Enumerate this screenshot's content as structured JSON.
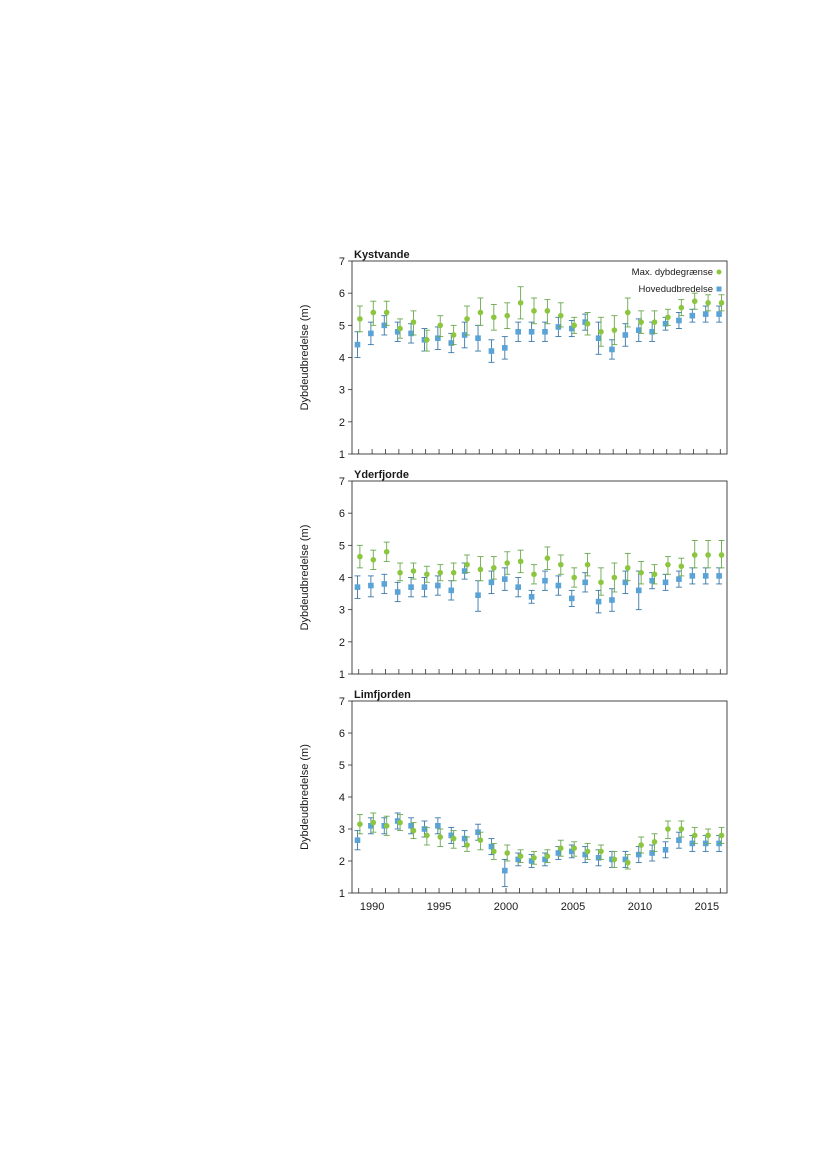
{
  "colors": {
    "max_dybdegraense": "#8cc63f",
    "hovedudbredelse": "#5aa3d6",
    "max_error": "#6aa84f",
    "hoved_error": "#3b78a8"
  },
  "chart_data": [
    {
      "type": "scatter",
      "title": "Kystvande",
      "xlabel": "",
      "ylabel": "Dybdeudbredelse (m)",
      "ylim": [
        1,
        7
      ],
      "yticks": [
        "1",
        "2",
        "3",
        "4",
        "5",
        "6",
        "7"
      ],
      "xlim": [
        1988.5,
        2016.5
      ],
      "xticks": [],
      "grid": false,
      "legend": "top-right",
      "x": [
        1989,
        1990,
        1991,
        1992,
        1993,
        1994,
        1995,
        1996,
        1997,
        1998,
        1999,
        2000,
        2001,
        2002,
        2003,
        2004,
        2005,
        2006,
        2007,
        2008,
        2009,
        2010,
        2011,
        2012,
        2013,
        2014,
        2015,
        2016
      ],
      "series": [
        {
          "name": "Max. dybdegrænse",
          "marker": "circle",
          "values": [
            5.2,
            5.4,
            5.4,
            4.9,
            5.1,
            4.55,
            5.0,
            4.7,
            5.2,
            5.4,
            5.25,
            5.3,
            5.7,
            5.45,
            5.45,
            5.3,
            5.0,
            5.05,
            4.8,
            4.85,
            5.4,
            5.1,
            5.1,
            5.25,
            5.55,
            5.75,
            5.7,
            5.7
          ],
          "err_low": [
            4.8,
            5.0,
            5.0,
            4.6,
            4.7,
            4.2,
            4.65,
            4.4,
            4.7,
            5.0,
            4.85,
            4.9,
            5.2,
            5.05,
            5.05,
            4.95,
            4.75,
            4.7,
            4.35,
            4.4,
            4.95,
            4.75,
            4.75,
            5.0,
            5.3,
            5.5,
            5.45,
            5.45
          ],
          "err_high": [
            5.6,
            5.75,
            5.75,
            5.2,
            5.45,
            4.85,
            5.3,
            5.0,
            5.6,
            5.85,
            5.65,
            5.7,
            6.2,
            5.85,
            5.8,
            5.7,
            5.25,
            5.4,
            5.25,
            5.3,
            5.85,
            5.45,
            5.45,
            5.5,
            5.8,
            6.0,
            5.95,
            5.95
          ]
        },
        {
          "name": "Hovedudbredelse",
          "marker": "square",
          "values": [
            4.4,
            4.75,
            5.0,
            4.8,
            4.75,
            4.55,
            4.6,
            4.45,
            4.7,
            4.6,
            4.2,
            4.3,
            4.8,
            4.8,
            4.8,
            4.95,
            4.9,
            5.1,
            4.6,
            4.25,
            4.7,
            4.85,
            4.8,
            5.05,
            5.15,
            5.3,
            5.35,
            5.35
          ],
          "err_low": [
            4.0,
            4.4,
            4.7,
            4.5,
            4.45,
            4.2,
            4.25,
            4.15,
            4.3,
            4.2,
            3.85,
            3.95,
            4.5,
            4.5,
            4.5,
            4.65,
            4.65,
            4.85,
            4.1,
            3.95,
            4.35,
            4.5,
            4.5,
            4.85,
            4.9,
            5.1,
            5.1,
            5.1
          ],
          "err_high": [
            4.8,
            5.1,
            5.3,
            5.1,
            5.05,
            4.9,
            4.95,
            4.75,
            5.1,
            5.0,
            4.55,
            4.65,
            5.1,
            5.1,
            5.1,
            5.25,
            5.15,
            5.35,
            5.1,
            4.55,
            5.05,
            5.2,
            5.1,
            5.25,
            5.4,
            5.5,
            5.6,
            5.6
          ]
        }
      ]
    },
    {
      "type": "scatter",
      "title": "Yderfjorde",
      "xlabel": "",
      "ylabel": "Dybdeudbredelse (m)",
      "ylim": [
        1,
        7
      ],
      "yticks": [
        "1",
        "2",
        "3",
        "4",
        "5",
        "6",
        "7"
      ],
      "xlim": [
        1988.5,
        2016.5
      ],
      "xticks": [],
      "grid": false,
      "x": [
        1989,
        1990,
        1991,
        1992,
        1993,
        1994,
        1995,
        1996,
        1997,
        1998,
        1999,
        2000,
        2001,
        2002,
        2003,
        2004,
        2005,
        2006,
        2007,
        2008,
        2009,
        2010,
        2011,
        2012,
        2013,
        2014,
        2015,
        2016
      ],
      "series": [
        {
          "name": "Max. dybdegrænse",
          "marker": "circle",
          "values": [
            4.65,
            4.55,
            4.8,
            4.15,
            4.2,
            4.1,
            4.15,
            4.15,
            4.4,
            4.25,
            4.3,
            4.45,
            4.5,
            4.1,
            4.6,
            4.4,
            4.0,
            4.4,
            3.85,
            4.0,
            4.3,
            4.15,
            4.1,
            4.4,
            4.35,
            4.7,
            4.7,
            4.7
          ],
          "err_low": [
            4.3,
            4.25,
            4.5,
            3.9,
            3.95,
            3.85,
            3.9,
            3.9,
            4.15,
            3.9,
            3.95,
            4.1,
            4.15,
            3.8,
            4.25,
            4.1,
            3.7,
            4.05,
            3.45,
            3.55,
            3.9,
            3.8,
            3.8,
            4.1,
            4.05,
            4.3,
            4.3,
            4.3
          ],
          "err_high": [
            5.0,
            4.85,
            5.1,
            4.45,
            4.45,
            4.35,
            4.4,
            4.45,
            4.7,
            4.65,
            4.65,
            4.8,
            4.85,
            4.4,
            4.95,
            4.7,
            4.3,
            4.75,
            4.3,
            4.45,
            4.75,
            4.5,
            4.4,
            4.65,
            4.6,
            5.15,
            5.15,
            5.15
          ]
        },
        {
          "name": "Hovedudbredelse",
          "marker": "square",
          "values": [
            3.7,
            3.75,
            3.8,
            3.55,
            3.7,
            3.7,
            3.75,
            3.6,
            4.2,
            3.45,
            3.85,
            3.95,
            3.7,
            3.4,
            3.9,
            3.75,
            3.35,
            3.85,
            3.25,
            3.3,
            3.85,
            3.6,
            3.9,
            3.85,
            3.95,
            4.05,
            4.05,
            4.05
          ],
          "err_low": [
            3.35,
            3.4,
            3.5,
            3.25,
            3.4,
            3.4,
            3.45,
            3.3,
            3.95,
            2.95,
            3.5,
            3.6,
            3.4,
            3.2,
            3.6,
            3.45,
            3.1,
            3.55,
            2.9,
            2.95,
            3.5,
            3.0,
            3.65,
            3.6,
            3.7,
            3.8,
            3.8,
            3.8
          ],
          "err_high": [
            4.05,
            4.05,
            4.1,
            3.85,
            4.0,
            4.0,
            4.05,
            3.9,
            4.45,
            3.9,
            4.2,
            4.3,
            4.0,
            3.6,
            4.2,
            4.05,
            3.6,
            4.15,
            3.6,
            3.65,
            4.2,
            4.2,
            4.15,
            4.1,
            4.2,
            4.3,
            4.3,
            4.3
          ]
        }
      ]
    },
    {
      "type": "scatter",
      "title": "Limfjorden",
      "xlabel": "",
      "ylabel": "Dybdeudbredelse (m)",
      "ylim": [
        1,
        7
      ],
      "yticks": [
        "1",
        "2",
        "3",
        "4",
        "5",
        "6",
        "7"
      ],
      "xlim": [
        1988.5,
        2016.5
      ],
      "xticks": [
        "1990",
        "1995",
        "2000",
        "2005",
        "2010",
        "2015"
      ],
      "grid": false,
      "x": [
        1989,
        1990,
        1991,
        1992,
        1993,
        1994,
        1995,
        1996,
        1997,
        1998,
        1999,
        2000,
        2001,
        2002,
        2003,
        2004,
        2005,
        2006,
        2007,
        2008,
        2009,
        2010,
        2011,
        2012,
        2013,
        2014,
        2015,
        2016
      ],
      "series": [
        {
          "name": "Max. dybdegrænse",
          "marker": "circle",
          "values": [
            3.15,
            3.2,
            3.1,
            3.2,
            2.95,
            2.8,
            2.75,
            2.7,
            2.5,
            2.65,
            2.3,
            2.25,
            2.15,
            2.1,
            2.15,
            2.4,
            2.4,
            2.3,
            2.3,
            2.05,
            1.95,
            2.5,
            2.6,
            3.0,
            3.0,
            2.8,
            2.8,
            2.8
          ],
          "err_low": [
            2.85,
            2.9,
            2.8,
            2.95,
            2.7,
            2.5,
            2.45,
            2.4,
            2.3,
            2.35,
            2.05,
            2.0,
            1.95,
            1.9,
            1.95,
            2.15,
            2.15,
            2.05,
            2.05,
            1.8,
            1.75,
            2.25,
            2.3,
            2.7,
            2.75,
            2.55,
            2.55,
            2.55
          ],
          "err_high": [
            3.45,
            3.5,
            3.4,
            3.45,
            3.2,
            3.05,
            3.0,
            2.95,
            2.75,
            2.9,
            2.55,
            2.5,
            2.35,
            2.3,
            2.35,
            2.65,
            2.6,
            2.55,
            2.5,
            2.3,
            2.2,
            2.75,
            2.85,
            3.25,
            3.25,
            3.05,
            3.0,
            3.05
          ]
        },
        {
          "name": "Hovedudbredelse",
          "marker": "square",
          "values": [
            2.65,
            3.1,
            3.1,
            3.25,
            3.1,
            3.0,
            3.1,
            2.8,
            2.7,
            2.9,
            2.45,
            1.7,
            2.05,
            2.0,
            2.05,
            2.25,
            2.3,
            2.2,
            2.1,
            2.05,
            2.05,
            2.2,
            2.25,
            2.35,
            2.65,
            2.55,
            2.55,
            2.55
          ],
          "err_low": [
            2.35,
            2.85,
            2.85,
            3.0,
            2.85,
            2.75,
            2.85,
            2.55,
            2.45,
            2.65,
            2.2,
            1.2,
            1.85,
            1.8,
            1.85,
            2.05,
            2.1,
            1.95,
            1.85,
            1.8,
            1.8,
            1.95,
            2.0,
            2.1,
            2.4,
            2.3,
            2.3,
            2.3
          ],
          "err_high": [
            2.95,
            3.35,
            3.35,
            3.5,
            3.35,
            3.25,
            3.35,
            3.05,
            2.95,
            3.15,
            2.7,
            2.05,
            2.25,
            2.2,
            2.25,
            2.45,
            2.5,
            2.45,
            2.35,
            2.3,
            2.3,
            2.45,
            2.5,
            2.6,
            2.9,
            2.8,
            2.8,
            2.8
          ]
        }
      ]
    }
  ]
}
